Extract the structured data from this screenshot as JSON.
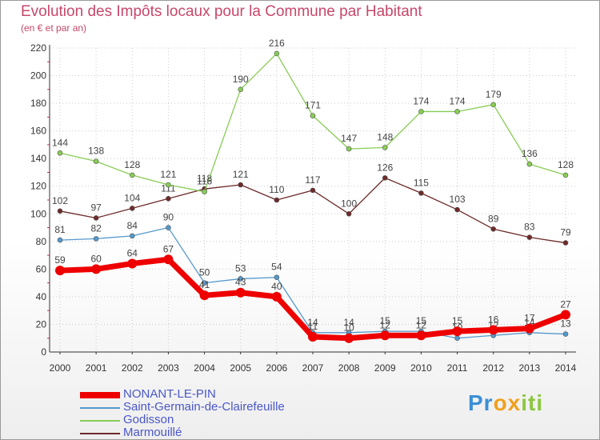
{
  "chart_data": {
    "type": "line",
    "title": "Evolution des Impôts locaux pour la Commune par Habitant",
    "subtitle": "(en € et par an)",
    "xlabel": "",
    "ylabel": "",
    "x": [
      "2000",
      "2001",
      "2002",
      "2003",
      "2004",
      "2005",
      "2006",
      "2007",
      "2008",
      "2009",
      "2010",
      "2011",
      "2012",
      "2013",
      "2014"
    ],
    "ylim": [
      0,
      220
    ],
    "yticks": [
      0,
      20,
      40,
      60,
      80,
      100,
      120,
      140,
      160,
      180,
      200,
      220
    ],
    "grid": true,
    "legend_position": "bottom-left",
    "series": [
      {
        "name": "NONANT-LE-PIN",
        "color": "#ee0000",
        "values": [
          59,
          60,
          64,
          67,
          41,
          43,
          40,
          11,
          10,
          12,
          12,
          15,
          16,
          17,
          27
        ],
        "labels": [
          "59",
          "60",
          "64",
          "67",
          "41",
          "43",
          "40",
          "11",
          "10",
          "12",
          "12",
          "15",
          "16",
          "17",
          "27"
        ]
      },
      {
        "name": "Saint-Germain-de-Clairefeuille",
        "color": "#5599cc",
        "values": [
          81,
          82,
          84,
          90,
          50,
          53,
          54,
          14,
          14,
          15,
          15,
          10,
          12,
          14,
          13
        ],
        "labels": [
          "81",
          "82",
          "84",
          "90",
          "50",
          "53",
          "54",
          "14",
          "14",
          "15",
          "15",
          "10",
          "12",
          "14",
          "13"
        ]
      },
      {
        "name": "Godisson",
        "color": "#88cc55",
        "values": [
          144,
          138,
          128,
          121,
          116,
          190,
          216,
          171,
          147,
          148,
          174,
          174,
          179,
          136,
          128
        ],
        "labels": [
          "144",
          "138",
          "128",
          "121",
          "116",
          "190",
          "216",
          "171",
          "147",
          "148",
          "174",
          "174",
          "179",
          "136",
          "128"
        ]
      },
      {
        "name": "Marmouillé",
        "color": "#6e2a2a",
        "values": [
          102,
          97,
          104,
          111,
          118,
          121,
          110,
          117,
          100,
          126,
          115,
          103,
          89,
          83,
          79
        ],
        "labels": [
          "102",
          "97",
          "104",
          "111",
          "118",
          "121",
          "110",
          "117",
          "100",
          "126",
          "115",
          "103",
          "89",
          "83",
          "79"
        ]
      }
    ]
  },
  "logo": {
    "p1": "Pr",
    "p2": "ox",
    "p3": "iti"
  }
}
